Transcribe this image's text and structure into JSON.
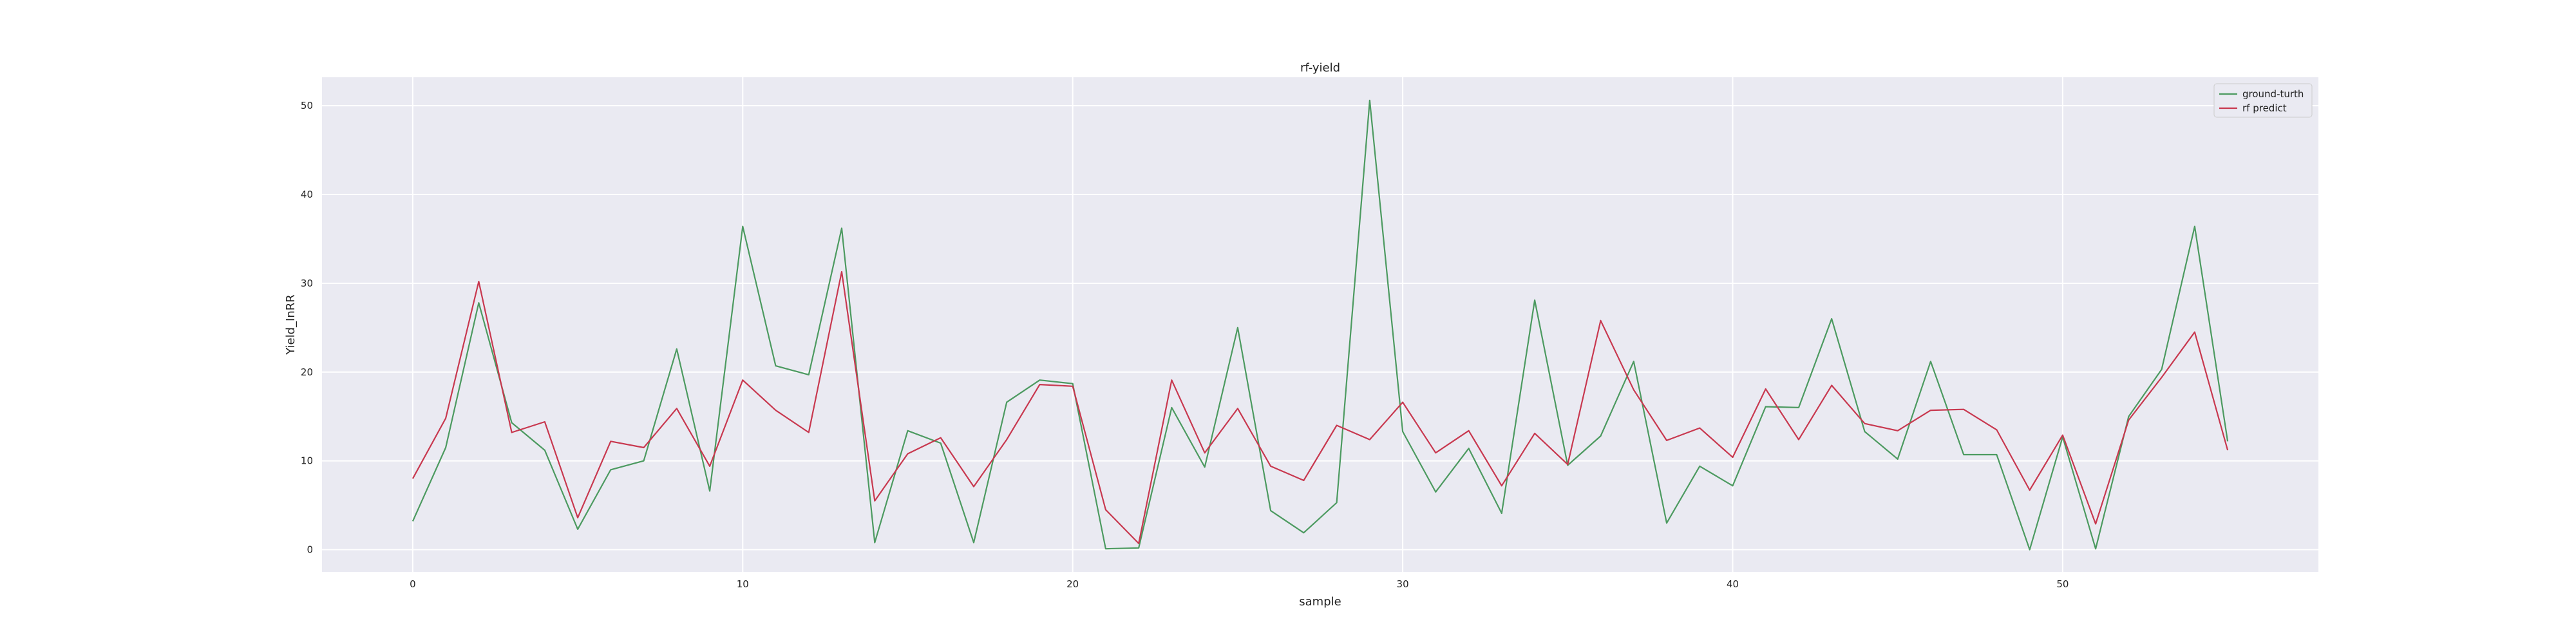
{
  "chart_data": {
    "type": "line",
    "title": "rf-yield",
    "xlabel": "sample",
    "ylabel": "Yield_InRR",
    "xlim": [
      -2.75,
      57.75
    ],
    "ylim": [
      -2.5,
      53.2
    ],
    "xticks": [
      0,
      10,
      20,
      30,
      40,
      50
    ],
    "yticks": [
      0,
      10,
      20,
      30,
      40,
      50
    ],
    "grid": true,
    "legend_position": "top-right",
    "x": [
      0,
      1,
      2,
      3,
      4,
      5,
      6,
      7,
      8,
      9,
      10,
      11,
      12,
      13,
      14,
      15,
      16,
      17,
      18,
      19,
      20,
      21,
      22,
      23,
      24,
      25,
      26,
      27,
      28,
      29,
      30,
      31,
      32,
      33,
      34,
      35,
      36,
      37,
      38,
      39,
      40,
      41,
      42,
      43,
      44,
      45,
      46,
      47,
      48,
      49,
      50,
      51,
      52,
      53,
      54,
      55
    ],
    "series": [
      {
        "name": "ground-turth",
        "color": "#4c9a60",
        "values": [
          3.2,
          11.5,
          27.8,
          14.3,
          11.2,
          2.3,
          9.0,
          10.0,
          22.6,
          6.6,
          36.4,
          20.7,
          19.7,
          36.2,
          0.8,
          13.4,
          12.0,
          0.8,
          16.6,
          19.1,
          18.7,
          0.1,
          0.2,
          16.0,
          9.3,
          25.0,
          4.4,
          1.9,
          5.3,
          50.6,
          13.3,
          6.5,
          11.4,
          4.1,
          28.1,
          9.5,
          12.8,
          21.2,
          3.0,
          9.4,
          7.2,
          16.1,
          16.0,
          26.0,
          13.3,
          10.2,
          21.2,
          10.7,
          10.7,
          0.0,
          12.7,
          0.1,
          15.0,
          20.3,
          36.4,
          12.2
        ]
      },
      {
        "name": "rf predict",
        "color": "#c8384f",
        "values": [
          8.0,
          14.8,
          30.2,
          13.2,
          14.4,
          3.6,
          12.2,
          11.5,
          15.9,
          9.4,
          19.1,
          15.7,
          13.2,
          31.3,
          5.5,
          10.8,
          12.6,
          7.1,
          12.4,
          18.6,
          18.4,
          4.5,
          0.7,
          19.1,
          10.9,
          15.9,
          9.4,
          7.8,
          14.0,
          12.4,
          16.6,
          10.9,
          13.4,
          7.2,
          13.1,
          9.6,
          25.8,
          18.0,
          12.3,
          13.7,
          10.4,
          18.1,
          12.4,
          18.5,
          14.2,
          13.4,
          15.7,
          15.8,
          13.5,
          6.7,
          12.9,
          2.9,
          14.6,
          19.4,
          24.5,
          11.2
        ]
      }
    ]
  }
}
